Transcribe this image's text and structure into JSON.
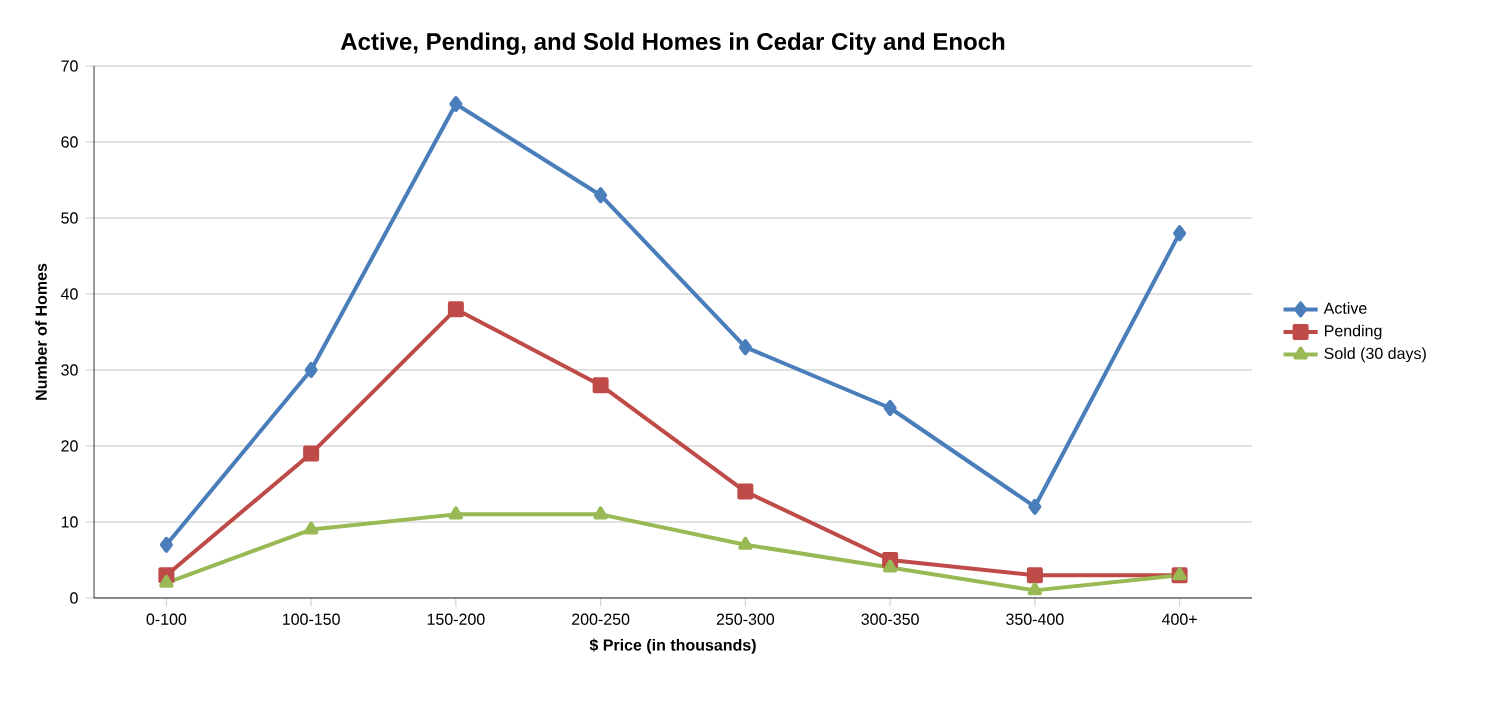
{
  "chart_data": {
    "type": "line",
    "title": "Active, Pending, and Sold Homes in Cedar City and Enoch",
    "xlabel": "$ Price (in thousands)",
    "ylabel": "Number of Homes",
    "categories": [
      "0-100",
      "100-150",
      "150-200",
      "200-250",
      "250-300",
      "300-350",
      "350-400",
      "400+"
    ],
    "series": [
      {
        "name": "Active",
        "color": "#4a7ebb",
        "marker": "diamond",
        "values": [
          7,
          30,
          65,
          53,
          33,
          25,
          12,
          48
        ]
      },
      {
        "name": "Pending",
        "color": "#be4b48",
        "marker": "square",
        "values": [
          3,
          19,
          38,
          28,
          14,
          5,
          3,
          3
        ]
      },
      {
        "name": "Sold (30 days)",
        "color": "#98b954",
        "marker": "triangle",
        "values": [
          2,
          9,
          11,
          11,
          7,
          4,
          1,
          3
        ]
      }
    ],
    "ylim": [
      0,
      70
    ],
    "yticks": [
      0,
      10,
      20,
      30,
      40,
      50,
      60,
      70
    ],
    "grid": "y",
    "legend": "right",
    "line_style": "solid"
  }
}
